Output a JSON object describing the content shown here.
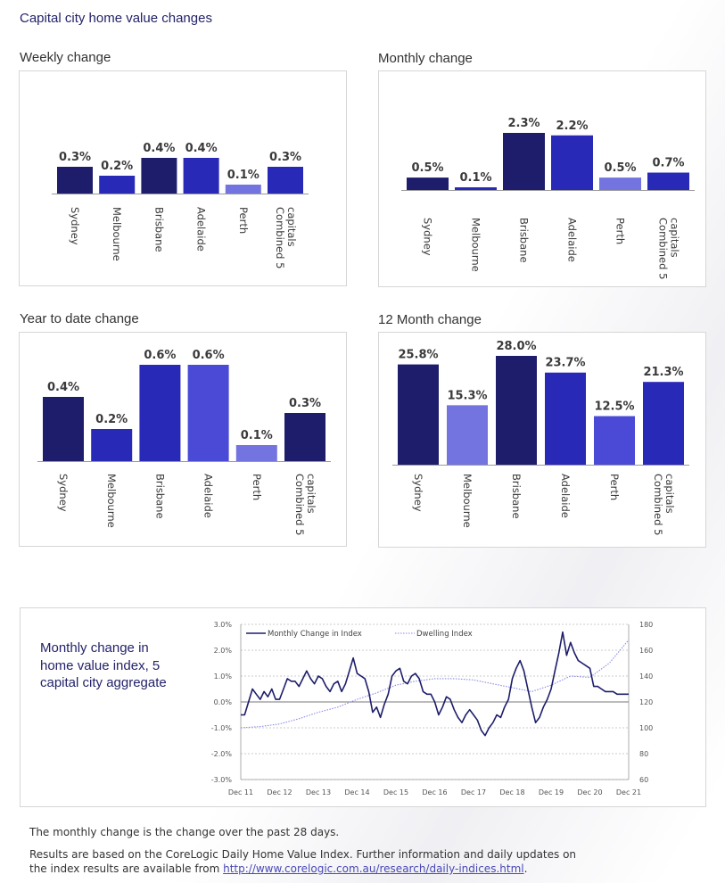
{
  "title": "Capital city home value changes",
  "colors": {
    "c1": "#1d1d6b",
    "c2": "#2929b8",
    "c3": "#4a4ad6",
    "c4": "#7474e0",
    "line": "#1d1d6b",
    "dotted": "#8a8ae6"
  },
  "chart_data": [
    {
      "type": "bar",
      "title": "Weekly change",
      "categories": [
        "Sydney",
        "Melbourne",
        "Brisbane",
        "Adelaide",
        "Perth",
        "Combined 5 capitals"
      ],
      "values": [
        0.3,
        0.2,
        0.4,
        0.4,
        0.1,
        0.3
      ],
      "labels": [
        "0.3%",
        "0.2%",
        "0.4%",
        "0.4%",
        "0.1%",
        "0.3%"
      ],
      "colors": [
        "#1d1d6b",
        "#2929b8",
        "#1d1d6b",
        "#2929b8",
        "#7474e0",
        "#2929b8"
      ],
      "ylim": [
        0,
        0.4
      ]
    },
    {
      "type": "bar",
      "title": "Monthly change",
      "categories": [
        "Sydney",
        "Melbourne",
        "Brisbane",
        "Adelaide",
        "Perth",
        "Combined 5 capitals"
      ],
      "values": [
        0.5,
        0.1,
        2.3,
        2.2,
        0.5,
        0.7
      ],
      "labels": [
        "0.5%",
        "0.1%",
        "2.3%",
        "2.2%",
        "0.5%",
        "0.7%"
      ],
      "colors": [
        "#1d1d6b",
        "#2929b8",
        "#1d1d6b",
        "#2929b8",
        "#7474e0",
        "#2929b8"
      ],
      "ylim": [
        0,
        2.3
      ]
    },
    {
      "type": "bar",
      "title": "Year to date change",
      "categories": [
        "Sydney",
        "Melbourne",
        "Brisbane",
        "Adelaide",
        "Perth",
        "Combined 5 capitals"
      ],
      "values": [
        0.4,
        0.2,
        0.6,
        0.6,
        0.1,
        0.3
      ],
      "labels": [
        "0.4%",
        "0.2%",
        "0.6%",
        "0.6%",
        "0.1%",
        "0.3%"
      ],
      "colors": [
        "#1d1d6b",
        "#2929b8",
        "#2929b8",
        "#4a4ad6",
        "#7474e0",
        "#1d1d6b"
      ],
      "ylim": [
        0,
        0.6
      ]
    },
    {
      "type": "bar",
      "title": "12 Month change",
      "categories": [
        "Sydney",
        "Melbourne",
        "Brisbane",
        "Adelaide",
        "Perth",
        "Combined 5 capitals"
      ],
      "values": [
        25.8,
        15.3,
        28.0,
        23.7,
        12.5,
        21.3
      ],
      "labels": [
        "25.8%",
        "15.3%",
        "28.0%",
        "23.7%",
        "12.5%",
        "21.3%"
      ],
      "colors": [
        "#1d1d6b",
        "#7474e0",
        "#1d1d6b",
        "#2929b8",
        "#4a4ad6",
        "#2929b8"
      ],
      "ylim": [
        0,
        28.0
      ]
    },
    {
      "type": "line",
      "title": "Monthly change in home value index, 5 capital city aggregate",
      "x_ticks": [
        "Dec 11",
        "Dec 12",
        "Dec 13",
        "Dec 14",
        "Dec 15",
        "Dec 16",
        "Dec 17",
        "Dec 18",
        "Dec 19",
        "Dec 20",
        "Dec 21"
      ],
      "y_left_ticks": [
        "3.0%",
        "2.0%",
        "1.0%",
        "0.0%",
        "-1.0%",
        "-2.0%",
        "-3.0%"
      ],
      "y_right_ticks": [
        "180",
        "160",
        "140",
        "120",
        "100",
        "80",
        "60"
      ],
      "ylim_left": [
        -3.0,
        3.0
      ],
      "ylim_right": [
        60,
        180
      ],
      "series": [
        {
          "name": "Monthly Change in Index",
          "axis": "left",
          "x": [
            0,
            0.1,
            0.2,
            0.3,
            0.4,
            0.5,
            0.6,
            0.7,
            0.8,
            0.9,
            1.0,
            1.1,
            1.2,
            1.3,
            1.4,
            1.5,
            1.6,
            1.7,
            1.8,
            1.9,
            2.0,
            2.1,
            2.2,
            2.3,
            2.4,
            2.5,
            2.6,
            2.7,
            2.8,
            2.9,
            3.0,
            3.1,
            3.2,
            3.3,
            3.4,
            3.5,
            3.6,
            3.7,
            3.8,
            3.9,
            4.0,
            4.1,
            4.2,
            4.3,
            4.4,
            4.5,
            4.6,
            4.7,
            4.8,
            4.9,
            5.0,
            5.1,
            5.2,
            5.3,
            5.4,
            5.5,
            5.6,
            5.7,
            5.8,
            5.9,
            6.0,
            6.1,
            6.2,
            6.3,
            6.4,
            6.5,
            6.6,
            6.7,
            6.8,
            6.9,
            7.0,
            7.1,
            7.2,
            7.3,
            7.4,
            7.5,
            7.6,
            7.7,
            7.8,
            7.9,
            8.0,
            8.1,
            8.2,
            8.3,
            8.4,
            8.5,
            8.6,
            8.7,
            8.8,
            8.9,
            9.0,
            9.1,
            9.2,
            9.3,
            9.4,
            9.5,
            9.6,
            9.7,
            9.8,
            9.9,
            10.0
          ],
          "values": [
            -0.5,
            -0.5,
            0.0,
            0.5,
            0.3,
            0.1,
            0.4,
            0.2,
            0.5,
            0.1,
            0.1,
            0.5,
            0.9,
            0.8,
            0.8,
            0.6,
            0.9,
            1.2,
            0.9,
            0.7,
            1.0,
            0.9,
            0.6,
            0.4,
            0.7,
            0.8,
            0.4,
            0.7,
            1.2,
            1.7,
            1.1,
            1.0,
            0.9,
            0.4,
            -0.4,
            -0.2,
            -0.6,
            -0.1,
            0.3,
            1.0,
            1.2,
            1.3,
            0.8,
            0.7,
            1.0,
            1.1,
            0.9,
            0.4,
            0.3,
            0.3,
            0.0,
            -0.5,
            -0.2,
            0.2,
            0.1,
            -0.3,
            -0.6,
            -0.8,
            -0.5,
            -0.3,
            -0.5,
            -0.7,
            -1.1,
            -1.3,
            -1.0,
            -0.8,
            -0.5,
            -0.6,
            -0.2,
            0.1,
            0.9,
            1.3,
            1.6,
            1.2,
            0.5,
            -0.2,
            -0.8,
            -0.6,
            -0.2,
            0.1,
            0.5,
            1.2,
            1.9,
            2.7,
            1.8,
            2.3,
            1.9,
            1.6,
            1.5,
            1.4,
            1.3,
            0.6,
            0.6,
            0.5,
            0.4,
            0.4,
            0.4,
            0.3,
            0.3,
            0.3,
            0.3
          ]
        },
        {
          "name": "Dwelling Index",
          "axis": "right",
          "x": [
            0,
            0.5,
            1.0,
            1.5,
            2.0,
            2.5,
            3.0,
            3.5,
            4.0,
            4.5,
            5.0,
            5.5,
            6.0,
            6.5,
            7.0,
            7.5,
            8.0,
            8.5,
            9.0,
            9.5,
            10.0
          ],
          "values": [
            100,
            101,
            103,
            107,
            112,
            116,
            122,
            127,
            133,
            136,
            138,
            138,
            137,
            134,
            131,
            128,
            133,
            140,
            139,
            150,
            168
          ]
        }
      ]
    }
  ],
  "footnotes": {
    "line1": "The monthly change is the change over the past 28 days.",
    "line2": "Results are based on the CoreLogic Daily Home Value Index. Further information and daily updates on",
    "line3_prefix": "the index results are available from ",
    "link": "http://www.corelogic.com.au/research/daily-indices.html",
    "line3_suffix": "."
  }
}
